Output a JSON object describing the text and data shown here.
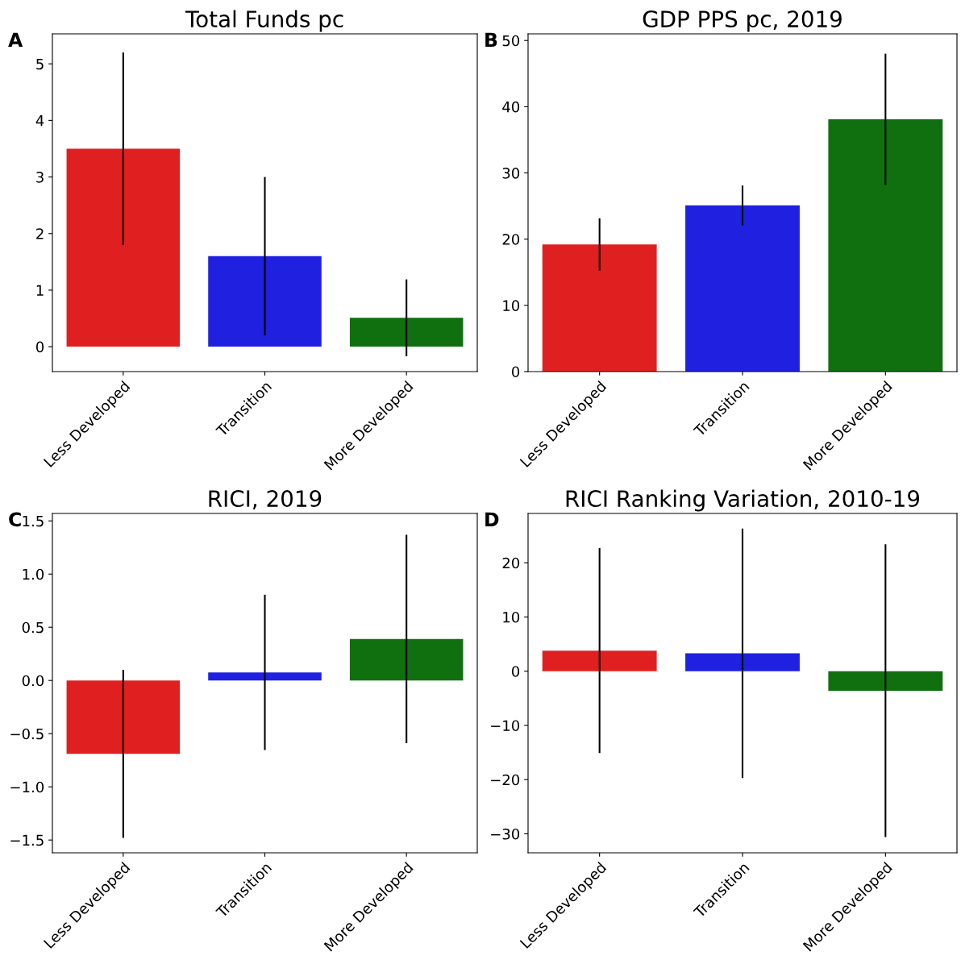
{
  "chart_data": [
    {
      "type": "bar",
      "title": "Total Funds pc",
      "annotations": [
        "A"
      ],
      "categories": [
        "Less Developed",
        "Transition",
        "More Developed"
      ],
      "values": [
        3.5,
        1.6,
        0.51
      ],
      "colors": [
        "#e02020",
        "#2020e0",
        "#107010"
      ],
      "errors": [
        1.7,
        1.4,
        0.68
      ],
      "ylim": [
        -0.44,
        5.53
      ],
      "yticks": [
        0,
        1,
        2,
        3,
        4,
        5
      ],
      "grid": false,
      "legend": false
    },
    {
      "type": "bar",
      "title": "GDP PPS pc, 2019",
      "annotations": [
        "B"
      ],
      "categories": [
        "Less Developed",
        "Transition",
        "More Developed"
      ],
      "values": [
        19.2,
        25.1,
        38.1
      ],
      "colors": [
        "#e02020",
        "#2020e0",
        "#107010"
      ],
      "errors": [
        3.95,
        3,
        9.9
      ],
      "ylim": [
        0,
        51
      ],
      "yticks": [
        0,
        10,
        20,
        30,
        40,
        50
      ],
      "grid": false,
      "legend": false
    },
    {
      "type": "bar",
      "title": "RICI, 2019",
      "annotations": [
        "C"
      ],
      "categories": [
        "Less Developed",
        "Transition",
        "More Developed"
      ],
      "values": [
        -0.69,
        0.076,
        0.39
      ],
      "colors": [
        "#e02020",
        "#2020e0",
        "#107010"
      ],
      "errors": [
        0.79,
        0.73,
        0.98
      ],
      "ylim": [
        -1.62,
        1.57
      ],
      "yticks": [
        {
          "value": -1.5,
          "label": "−1.5"
        },
        {
          "value": -1.0,
          "label": "−1.0"
        },
        {
          "value": -0.5,
          "label": "−0.5"
        },
        {
          "value": 0.0,
          "label": "0.0"
        },
        {
          "value": 0.5,
          "label": "0.5"
        },
        {
          "value": 1.0,
          "label": "1.0"
        },
        {
          "value": 1.5,
          "label": "1.5"
        }
      ],
      "grid": false,
      "legend": false
    },
    {
      "type": "bar",
      "title": "RICI Ranking Variation, 2010-19",
      "annotations": [
        "D"
      ],
      "categories": [
        "Less Developed",
        "Transition",
        "More Developed"
      ],
      "values": [
        3.8,
        3.3,
        -3.6
      ],
      "colors": [
        "#e02020",
        "#2020e0",
        "#107010"
      ],
      "errors": [
        18.9,
        23,
        27
      ],
      "ylim": [
        -33.5,
        29.1
      ],
      "yticks": [
        {
          "value": -30,
          "label": "−30"
        },
        {
          "value": -20,
          "label": "−20"
        },
        {
          "value": -10,
          "label": "−10"
        },
        0,
        10,
        20
      ],
      "grid": false,
      "legend": false
    }
  ]
}
